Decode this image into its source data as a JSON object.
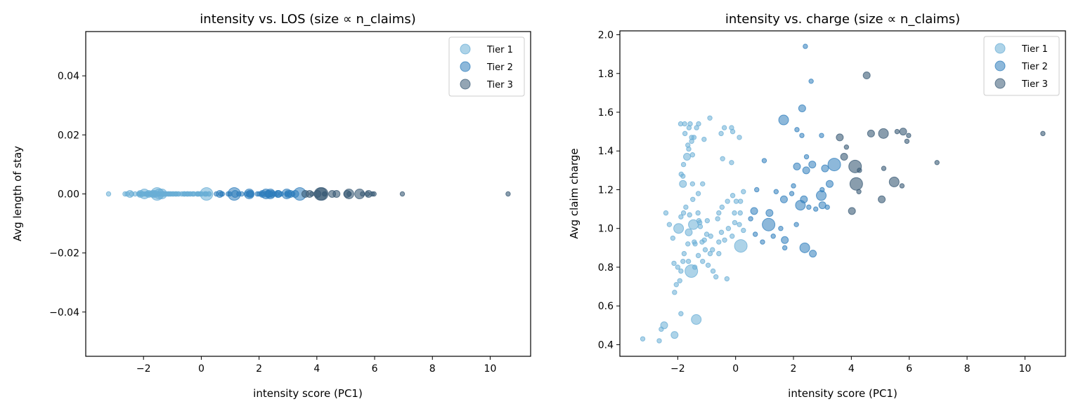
{
  "colors": {
    "Tier 1": "#6aaed6",
    "Tier 2": "#2f7ebc",
    "Tier 3": "#3b5b76"
  },
  "chart_data": [
    {
      "type": "scatter",
      "title": "intensity vs. LOS (size ∝ n_claims)",
      "xlabel": "intensity score (PC1)",
      "ylabel": "Avg length of stay",
      "xlim": [
        -4.0,
        11.4
      ],
      "ylim": [
        -0.055,
        0.055
      ],
      "xticks": [
        -2,
        0,
        2,
        4,
        6,
        8,
        10
      ],
      "xtick_labels": [
        "−2",
        "0",
        "2",
        "4",
        "6",
        "8",
        "10"
      ],
      "yticks": [
        0.04,
        0.02,
        0.0,
        -0.02,
        -0.04
      ],
      "ytick_labels": [
        "0.04",
        "0.02",
        "0.00",
        "−0.02",
        "−0.04"
      ],
      "legend": {
        "placement": "top-right",
        "entries": [
          "Tier 1",
          "Tier 2",
          "Tier 3"
        ]
      },
      "y_field": "los"
    },
    {
      "type": "scatter",
      "title": "intensity vs. charge (size ∝ n_claims)",
      "xlabel": "intensity score (PC1)",
      "ylabel": "Avg claim charge",
      "xlim": [
        -4.0,
        11.4
      ],
      "ylim": [
        0.34,
        2.02
      ],
      "xticks": [
        -2,
        0,
        2,
        4,
        6,
        8,
        10
      ],
      "xtick_labels": [
        "−2",
        "0",
        "2",
        "4",
        "6",
        "8",
        "10"
      ],
      "yticks": [
        0.4,
        0.6,
        0.8,
        1.0,
        1.2,
        1.4,
        1.6,
        1.8,
        2.0
      ],
      "ytick_labels": [
        "0.4",
        "0.6",
        "0.8",
        "1.0",
        "1.2",
        "1.4",
        "1.6",
        "1.8",
        "2.0"
      ],
      "legend": {
        "placement": "top-right",
        "entries": [
          "Tier 1",
          "Tier 2",
          "Tier 3"
        ]
      },
      "y_field": "charge"
    }
  ],
  "points_fields": [
    "intensity",
    "charge",
    "los",
    "relative_size",
    "tier"
  ],
  "points": [
    [
      0.18,
      0.91,
      0,
      4,
      "Tier 1"
    ],
    [
      -1.53,
      0.78,
      0,
      4,
      "Tier 1"
    ],
    [
      -1.36,
      0.53,
      0,
      3,
      "Tier 1"
    ],
    [
      -2.47,
      0.5,
      0,
      2,
      "Tier 1"
    ],
    [
      -2.11,
      0.45,
      0,
      2,
      "Tier 1"
    ],
    [
      -3.21,
      0.43,
      0,
      1,
      "Tier 1"
    ],
    [
      -2.64,
      0.42,
      0,
      1,
      "Tier 1"
    ],
    [
      -2.57,
      0.48,
      0,
      1,
      "Tier 1"
    ],
    [
      -1.89,
      0.56,
      0,
      1,
      "Tier 1"
    ],
    [
      -2.11,
      0.67,
      0,
      1,
      "Tier 1"
    ],
    [
      -2.05,
      0.71,
      0,
      1,
      "Tier 1"
    ],
    [
      -1.93,
      0.73,
      0,
      1,
      "Tier 1"
    ],
    [
      -2.13,
      0.82,
      0,
      1,
      "Tier 1"
    ],
    [
      -2.0,
      0.8,
      0,
      1,
      "Tier 1"
    ],
    [
      -1.89,
      0.78,
      0,
      1,
      "Tier 1"
    ],
    [
      -1.82,
      0.83,
      0,
      1,
      "Tier 1"
    ],
    [
      -1.63,
      0.83,
      0,
      1,
      "Tier 1"
    ],
    [
      -1.41,
      0.8,
      0,
      1,
      "Tier 1"
    ],
    [
      -1.78,
      0.87,
      0,
      1,
      "Tier 1"
    ],
    [
      -1.65,
      0.92,
      0,
      1,
      "Tier 1"
    ],
    [
      -1.4,
      0.92,
      0,
      1,
      "Tier 1"
    ],
    [
      -1.14,
      0.83,
      0,
      1,
      "Tier 1"
    ],
    [
      -0.95,
      0.81,
      0,
      1,
      "Tier 1"
    ],
    [
      -0.78,
      0.78,
      0,
      1,
      "Tier 1"
    ],
    [
      -0.68,
      0.75,
      0,
      1,
      "Tier 1"
    ],
    [
      -0.3,
      0.74,
      0,
      1,
      "Tier 1"
    ],
    [
      -0.58,
      0.87,
      0,
      1,
      "Tier 1"
    ],
    [
      -0.88,
      0.87,
      0,
      1,
      "Tier 1"
    ],
    [
      -1.29,
      0.86,
      0,
      1,
      "Tier 1"
    ],
    [
      -1.05,
      0.89,
      0,
      1,
      "Tier 1"
    ],
    [
      -0.8,
      0.89,
      0,
      1,
      "Tier 1"
    ],
    [
      -2.17,
      0.95,
      0,
      1,
      "Tier 1"
    ],
    [
      -1.62,
      0.98,
      0,
      2,
      "Tier 1"
    ],
    [
      -1.97,
      1.0,
      0,
      3,
      "Tier 1"
    ],
    [
      -2.29,
      1.02,
      0,
      1,
      "Tier 1"
    ],
    [
      -1.43,
      0.93,
      0,
      1,
      "Tier 1"
    ],
    [
      -1.08,
      0.94,
      0,
      1,
      "Tier 1"
    ],
    [
      -1.0,
      0.97,
      0,
      1,
      "Tier 1"
    ],
    [
      -0.86,
      0.96,
      0,
      1,
      "Tier 1"
    ],
    [
      -0.58,
      0.93,
      0,
      1,
      "Tier 1"
    ],
    [
      -0.49,
      0.98,
      0,
      1,
      "Tier 1"
    ],
    [
      -0.38,
      0.94,
      0,
      1,
      "Tier 1"
    ],
    [
      -0.12,
      0.96,
      0,
      1,
      "Tier 1"
    ],
    [
      -0.25,
      1.0,
      0,
      1,
      "Tier 1"
    ],
    [
      0.27,
      0.99,
      0,
      1,
      "Tier 1"
    ],
    [
      -0.03,
      1.03,
      0,
      1,
      "Tier 1"
    ],
    [
      0.13,
      1.02,
      0,
      1,
      "Tier 1"
    ],
    [
      -0.62,
      1.05,
      0,
      1,
      "Tier 1"
    ],
    [
      -0.58,
      1.08,
      0,
      1,
      "Tier 1"
    ],
    [
      -0.47,
      1.11,
      0,
      1,
      "Tier 1"
    ],
    [
      -0.28,
      1.14,
      0,
      1,
      "Tier 1"
    ],
    [
      -0.1,
      1.17,
      0,
      1,
      "Tier 1"
    ],
    [
      0.02,
      1.14,
      0,
      1,
      "Tier 1"
    ],
    [
      0.17,
      1.14,
      0,
      1,
      "Tier 1"
    ],
    [
      -0.04,
      1.08,
      0,
      1,
      "Tier 1"
    ],
    [
      0.16,
      1.08,
      0,
      1,
      "Tier 1"
    ],
    [
      0.27,
      1.19,
      0,
      1,
      "Tier 1"
    ],
    [
      -1.46,
      1.02,
      0,
      3,
      "Tier 1"
    ],
    [
      -1.24,
      1.03,
      0,
      1,
      "Tier 1"
    ],
    [
      -1.89,
      1.06,
      0,
      1,
      "Tier 1"
    ],
    [
      -1.59,
      1.07,
      0,
      1,
      "Tier 1"
    ],
    [
      -1.3,
      1.08,
      0,
      1,
      "Tier 1"
    ],
    [
      -1.8,
      1.08,
      0,
      1,
      "Tier 1"
    ],
    [
      -0.98,
      1.04,
      0,
      1,
      "Tier 1"
    ],
    [
      -2.41,
      1.08,
      0,
      1,
      "Tier 1"
    ],
    [
      -1.72,
      1.11,
      0,
      1,
      "Tier 1"
    ],
    [
      -1.48,
      1.15,
      0,
      1,
      "Tier 1"
    ],
    [
      -1.29,
      1.18,
      0,
      1,
      "Tier 1"
    ],
    [
      -1.82,
      1.23,
      0,
      2,
      "Tier 1"
    ],
    [
      -1.49,
      1.23,
      0,
      1,
      "Tier 1"
    ],
    [
      -1.14,
      1.23,
      0,
      1,
      "Tier 1"
    ],
    [
      -1.88,
      1.28,
      0,
      1,
      "Tier 1"
    ],
    [
      -1.82,
      1.27,
      0,
      1,
      "Tier 1"
    ],
    [
      -1.68,
      1.37,
      0,
      2,
      "Tier 1"
    ],
    [
      -1.8,
      1.33,
      0,
      1,
      "Tier 1"
    ],
    [
      -1.62,
      1.41,
      0,
      1,
      "Tier 1"
    ],
    [
      -1.49,
      1.38,
      0,
      1,
      "Tier 1"
    ],
    [
      -1.65,
      1.43,
      0,
      1,
      "Tier 1"
    ],
    [
      -1.52,
      1.47,
      0,
      1,
      "Tier 1"
    ],
    [
      -1.44,
      1.47,
      0,
      1,
      "Tier 1"
    ],
    [
      -1.75,
      1.49,
      0,
      1,
      "Tier 1"
    ],
    [
      -1.09,
      1.46,
      0,
      1,
      "Tier 1"
    ],
    [
      -1.52,
      1.45,
      0,
      1,
      "Tier 1"
    ],
    [
      -1.9,
      1.54,
      0,
      1,
      "Tier 1"
    ],
    [
      -1.76,
      1.54,
      0,
      1,
      "Tier 1"
    ],
    [
      -1.57,
      1.54,
      0,
      1,
      "Tier 1"
    ],
    [
      -1.61,
      1.52,
      0,
      1,
      "Tier 1"
    ],
    [
      -1.35,
      1.52,
      0,
      1,
      "Tier 1"
    ],
    [
      -1.28,
      1.54,
      0,
      1,
      "Tier 1"
    ],
    [
      -0.89,
      1.57,
      0,
      1,
      "Tier 1"
    ],
    [
      -0.39,
      1.52,
      0,
      1,
      "Tier 1"
    ],
    [
      -0.5,
      1.49,
      0,
      1,
      "Tier 1"
    ],
    [
      -0.14,
      1.52,
      0,
      1,
      "Tier 1"
    ],
    [
      -0.1,
      1.5,
      0,
      1,
      "Tier 1"
    ],
    [
      0.13,
      1.47,
      0,
      1,
      "Tier 1"
    ],
    [
      -0.45,
      1.36,
      0,
      1,
      "Tier 1"
    ],
    [
      -0.14,
      1.34,
      0,
      1,
      "Tier 1"
    ],
    [
      -1.27,
      1.04,
      0,
      1,
      "Tier 1"
    ],
    [
      -1.22,
      1.01,
      0,
      1,
      "Tier 1"
    ],
    [
      -1.16,
      0.93,
      0,
      1,
      "Tier 1"
    ],
    [
      2.41,
      1.94,
      0,
      1,
      "Tier 2"
    ],
    [
      2.61,
      1.76,
      0,
      1,
      "Tier 2"
    ],
    [
      2.3,
      1.62,
      0,
      2,
      "Tier 2"
    ],
    [
      1.66,
      1.56,
      0,
      3,
      "Tier 2"
    ],
    [
      2.12,
      1.51,
      0,
      1,
      "Tier 2"
    ],
    [
      2.29,
      1.48,
      0,
      1,
      "Tier 2"
    ],
    [
      2.97,
      1.48,
      0,
      1,
      "Tier 2"
    ],
    [
      2.45,
      1.37,
      0,
      1,
      "Tier 2"
    ],
    [
      0.99,
      1.35,
      0,
      1,
      "Tier 2"
    ],
    [
      2.12,
      1.32,
      0,
      2,
      "Tier 2"
    ],
    [
      2.44,
      1.3,
      0,
      2,
      "Tier 2"
    ],
    [
      2.65,
      1.33,
      0,
      2,
      "Tier 2"
    ],
    [
      3.09,
      1.31,
      0,
      2,
      "Tier 2"
    ],
    [
      3.41,
      1.33,
      0,
      4,
      "Tier 2"
    ],
    [
      3.25,
      1.23,
      0,
      2,
      "Tier 2"
    ],
    [
      2.0,
      1.22,
      0,
      1,
      "Tier 2"
    ],
    [
      0.73,
      1.2,
      0,
      1,
      "Tier 2"
    ],
    [
      1.4,
      1.19,
      0,
      1,
      "Tier 2"
    ],
    [
      1.94,
      1.18,
      0,
      1,
      "Tier 2"
    ],
    [
      2.99,
      1.2,
      0,
      1,
      "Tier 2"
    ],
    [
      2.96,
      1.17,
      0,
      3,
      "Tier 2"
    ],
    [
      1.67,
      1.15,
      0,
      2,
      "Tier 2"
    ],
    [
      2.36,
      1.15,
      0,
      2,
      "Tier 2"
    ],
    [
      2.24,
      1.12,
      0,
      3,
      "Tier 2"
    ],
    [
      2.53,
      1.11,
      0,
      1,
      "Tier 2"
    ],
    [
      2.77,
      1.1,
      0,
      1,
      "Tier 2"
    ],
    [
      3.0,
      1.12,
      0,
      2,
      "Tier 2"
    ],
    [
      3.17,
      1.11,
      0,
      1,
      "Tier 2"
    ],
    [
      0.64,
      1.09,
      0,
      2,
      "Tier 2"
    ],
    [
      1.17,
      1.08,
      0,
      2,
      "Tier 2"
    ],
    [
      1.14,
      1.02,
      0,
      4,
      "Tier 2"
    ],
    [
      0.52,
      1.05,
      0,
      1,
      "Tier 2"
    ],
    [
      2.1,
      1.02,
      0,
      1,
      "Tier 2"
    ],
    [
      1.56,
      1.0,
      0,
      1,
      "Tier 2"
    ],
    [
      0.68,
      0.97,
      0,
      1,
      "Tier 2"
    ],
    [
      1.3,
      0.96,
      0,
      1,
      "Tier 2"
    ],
    [
      0.93,
      0.93,
      0,
      1,
      "Tier 2"
    ],
    [
      1.7,
      0.94,
      0,
      2,
      "Tier 2"
    ],
    [
      1.7,
      0.9,
      0,
      1,
      "Tier 2"
    ],
    [
      2.39,
      0.9,
      0,
      3,
      "Tier 2"
    ],
    [
      2.67,
      0.87,
      0,
      2,
      "Tier 2"
    ],
    [
      3.6,
      1.47,
      0,
      2,
      "Tier 3"
    ],
    [
      4.53,
      1.79,
      0,
      2,
      "Tier 3"
    ],
    [
      4.68,
      1.49,
      0,
      2,
      "Tier 3"
    ],
    [
      5.11,
      1.49,
      0,
      3,
      "Tier 3"
    ],
    [
      5.58,
      1.5,
      0,
      1,
      "Tier 3"
    ],
    [
      5.79,
      1.5,
      0,
      2,
      "Tier 3"
    ],
    [
      5.98,
      1.48,
      0,
      1,
      "Tier 3"
    ],
    [
      5.92,
      1.45,
      0,
      1,
      "Tier 3"
    ],
    [
      10.62,
      1.49,
      0,
      1,
      "Tier 3"
    ],
    [
      6.96,
      1.34,
      0,
      1,
      "Tier 3"
    ],
    [
      3.83,
      1.42,
      0,
      1,
      "Tier 3"
    ],
    [
      3.75,
      1.37,
      0,
      2,
      "Tier 3"
    ],
    [
      4.13,
      1.32,
      0,
      4,
      "Tier 3"
    ],
    [
      4.28,
      1.3,
      0,
      1,
      "Tier 3"
    ],
    [
      5.12,
      1.31,
      0,
      1,
      "Tier 3"
    ],
    [
      4.17,
      1.23,
      0,
      4,
      "Tier 3"
    ],
    [
      4.26,
      1.19,
      0,
      1,
      "Tier 3"
    ],
    [
      5.48,
      1.24,
      0,
      3,
      "Tier 3"
    ],
    [
      5.75,
      1.22,
      0,
      1,
      "Tier 3"
    ],
    [
      5.05,
      1.15,
      0,
      2,
      "Tier 3"
    ],
    [
      4.02,
      1.09,
      0,
      2,
      "Tier 3"
    ]
  ]
}
